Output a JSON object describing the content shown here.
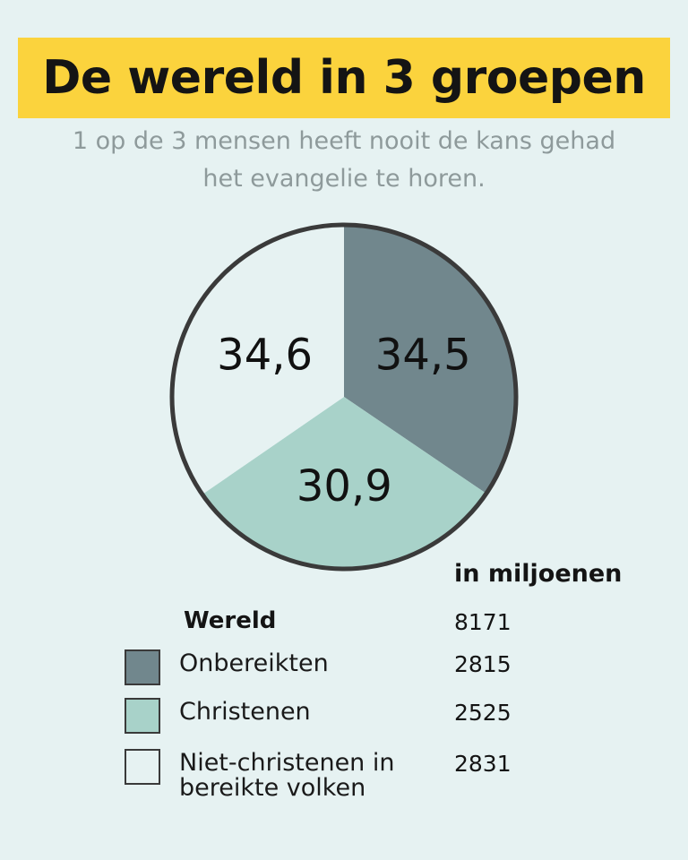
{
  "title": "De wereld in 3 groepen",
  "subtitle": [
    "1 op de 3 mensen heeft nooit de kans gehad",
    "het evangelie te horen."
  ],
  "unit_label": "in miljoenen",
  "legend_heading": "Wereld",
  "total_value": "8171",
  "colors": {
    "background": "#e6f2f2",
    "title_bar": "#fbd33d",
    "onbereikten": "#71878d",
    "christenen": "#a8d2c9",
    "niet_christenen": "#e6f2f2",
    "outline": "#3a3a3a"
  },
  "legend": [
    {
      "label": "Onbereikten",
      "value": "2815",
      "color": "#71878d"
    },
    {
      "label": "Christenen",
      "value": "2525",
      "color": "#a8d2c9"
    },
    {
      "label": "Niet-christenen in bereikte volken",
      "value": "2831",
      "color": "#e6f2f2"
    }
  ],
  "chart_data": {
    "type": "pie",
    "title": "De wereld in 3 groepen",
    "slices": [
      {
        "name": "Onbereikten",
        "value": 34.5,
        "label": "34,5",
        "color": "#71878d"
      },
      {
        "name": "Christenen",
        "value": 30.9,
        "label": "30,9",
        "color": "#a8d2c9"
      },
      {
        "name": "Niet-christenen in bereikte volken",
        "value": 34.6,
        "label": "34,6",
        "color": "#e6f2f2"
      }
    ],
    "start_angle": "12 o'clock",
    "direction": "clockwise"
  }
}
